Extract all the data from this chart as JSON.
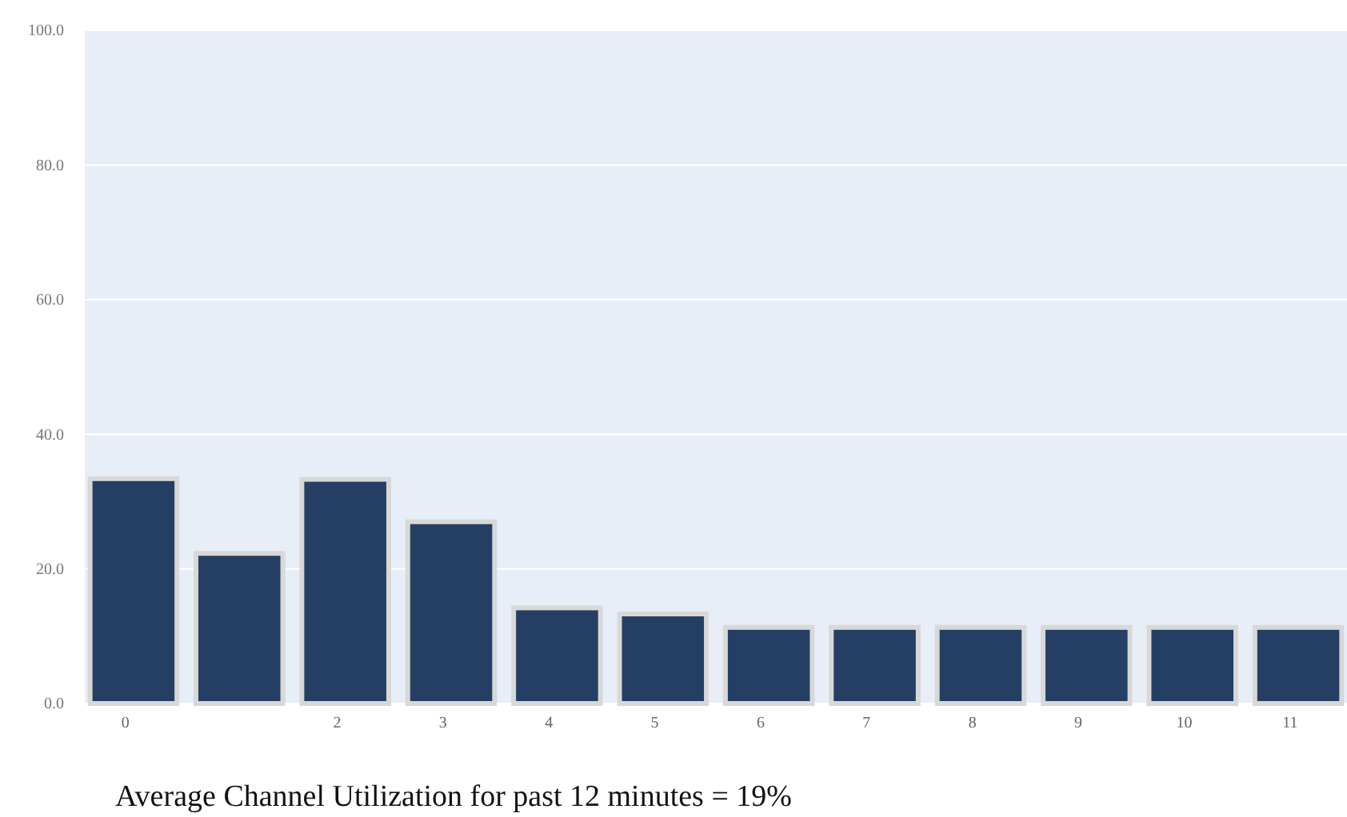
{
  "chart_data": {
    "type": "bar",
    "categories": [
      "0",
      null,
      "2",
      "3",
      "4",
      "5",
      "6",
      "7",
      "8",
      "9",
      "10",
      "11"
    ],
    "values": [
      33.4,
      22.3,
      33.3,
      27.0,
      14.2,
      13.3,
      11.3,
      11.3,
      11.3,
      11.3,
      11.3,
      11.3
    ],
    "color": "#243f63",
    "ylim": [
      0,
      100
    ],
    "yticks": [
      {
        "value": 0,
        "label": "0.0"
      },
      {
        "value": 20,
        "label": "20.0"
      },
      {
        "value": 40,
        "label": "40.0"
      },
      {
        "value": 60,
        "label": "60.0"
      },
      {
        "value": 80,
        "label": "80.0"
      },
      {
        "value": 100,
        "label": "100.0"
      }
    ],
    "grid": "y",
    "annotations": [
      "Average Channel Utilization for past 12 minutes = 19%"
    ]
  }
}
